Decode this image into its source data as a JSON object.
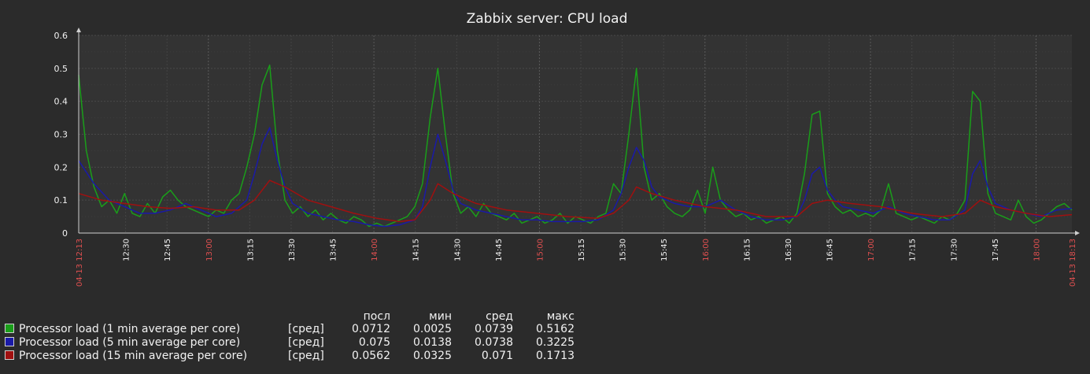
{
  "chart_data": {
    "type": "line",
    "title": "Zabbix server: CPU load",
    "y_ticks": [
      "0",
      "0.1",
      "0.2",
      "0.3",
      "0.4",
      "0.5",
      "0.6"
    ],
    "ylim": [
      0,
      0.6
    ],
    "x_start_label": "04-13 12:13",
    "x_end_label": "04-13 18:13",
    "x_ticks": [
      {
        "label": "12:30",
        "major": false
      },
      {
        "label": "12:45",
        "major": false
      },
      {
        "label": "13:00",
        "major": true
      },
      {
        "label": "13:15",
        "major": false
      },
      {
        "label": "13:30",
        "major": false
      },
      {
        "label": "13:45",
        "major": false
      },
      {
        "label": "14:00",
        "major": true
      },
      {
        "label": "14:15",
        "major": false
      },
      {
        "label": "14:30",
        "major": false
      },
      {
        "label": "14:45",
        "major": false
      },
      {
        "label": "15:00",
        "major": true
      },
      {
        "label": "15:15",
        "major": false
      },
      {
        "label": "15:30",
        "major": false
      },
      {
        "label": "15:45",
        "major": false
      },
      {
        "label": "16:00",
        "major": true
      },
      {
        "label": "16:15",
        "major": false
      },
      {
        "label": "16:30",
        "major": false
      },
      {
        "label": "16:45",
        "major": false
      },
      {
        "label": "17:00",
        "major": true
      },
      {
        "label": "17:15",
        "major": false
      },
      {
        "label": "17:30",
        "major": false
      },
      {
        "label": "17:45",
        "major": false
      },
      {
        "label": "18:00",
        "major": true
      }
    ],
    "grid": true,
    "series": [
      {
        "name": "Processor load (1 min average per core)",
        "color": "#1a9e1a",
        "points": [
          [
            0,
            0.48
          ],
          [
            1,
            0.25
          ],
          [
            2,
            0.14
          ],
          [
            3,
            0.08
          ],
          [
            4,
            0.1
          ],
          [
            5,
            0.06
          ],
          [
            6,
            0.12
          ],
          [
            7,
            0.06
          ],
          [
            8,
            0.05
          ],
          [
            9,
            0.09
          ],
          [
            10,
            0.06
          ],
          [
            11,
            0.11
          ],
          [
            12,
            0.13
          ],
          [
            13,
            0.1
          ],
          [
            14,
            0.08
          ],
          [
            15,
            0.07
          ],
          [
            16,
            0.06
          ],
          [
            17,
            0.05
          ],
          [
            18,
            0.07
          ],
          [
            19,
            0.06
          ],
          [
            20,
            0.1
          ],
          [
            21,
            0.12
          ],
          [
            22,
            0.2
          ],
          [
            23,
            0.3
          ],
          [
            24,
            0.45
          ],
          [
            25,
            0.51
          ],
          [
            26,
            0.25
          ],
          [
            27,
            0.1
          ],
          [
            28,
            0.06
          ],
          [
            29,
            0.08
          ],
          [
            30,
            0.05
          ],
          [
            31,
            0.07
          ],
          [
            32,
            0.04
          ],
          [
            33,
            0.06
          ],
          [
            34,
            0.04
          ],
          [
            35,
            0.03
          ],
          [
            36,
            0.05
          ],
          [
            37,
            0.04
          ],
          [
            38,
            0.02
          ],
          [
            39,
            0.03
          ],
          [
            40,
            0.02
          ],
          [
            41,
            0.03
          ],
          [
            42,
            0.04
          ],
          [
            43,
            0.05
          ],
          [
            44,
            0.08
          ],
          [
            45,
            0.15
          ],
          [
            46,
            0.35
          ],
          [
            47,
            0.5
          ],
          [
            48,
            0.3
          ],
          [
            49,
            0.12
          ],
          [
            50,
            0.06
          ],
          [
            51,
            0.08
          ],
          [
            52,
            0.05
          ],
          [
            53,
            0.09
          ],
          [
            54,
            0.06
          ],
          [
            55,
            0.05
          ],
          [
            56,
            0.04
          ],
          [
            57,
            0.06
          ],
          [
            58,
            0.03
          ],
          [
            59,
            0.04
          ],
          [
            60,
            0.05
          ],
          [
            61,
            0.03
          ],
          [
            62,
            0.04
          ],
          [
            63,
            0.06
          ],
          [
            64,
            0.03
          ],
          [
            65,
            0.05
          ],
          [
            66,
            0.04
          ],
          [
            67,
            0.03
          ],
          [
            68,
            0.05
          ],
          [
            69,
            0.06
          ],
          [
            70,
            0.15
          ],
          [
            71,
            0.12
          ],
          [
            72,
            0.3
          ],
          [
            73,
            0.5
          ],
          [
            74,
            0.2
          ],
          [
            75,
            0.1
          ],
          [
            76,
            0.12
          ],
          [
            77,
            0.08
          ],
          [
            78,
            0.06
          ],
          [
            79,
            0.05
          ],
          [
            80,
            0.07
          ],
          [
            81,
            0.13
          ],
          [
            82,
            0.06
          ],
          [
            83,
            0.2
          ],
          [
            84,
            0.1
          ],
          [
            85,
            0.07
          ],
          [
            86,
            0.05
          ],
          [
            87,
            0.06
          ],
          [
            88,
            0.04
          ],
          [
            89,
            0.05
          ],
          [
            90,
            0.03
          ],
          [
            91,
            0.04
          ],
          [
            92,
            0.05
          ],
          [
            93,
            0.03
          ],
          [
            94,
            0.06
          ],
          [
            95,
            0.18
          ],
          [
            96,
            0.36
          ],
          [
            97,
            0.37
          ],
          [
            98,
            0.12
          ],
          [
            99,
            0.08
          ],
          [
            100,
            0.06
          ],
          [
            101,
            0.07
          ],
          [
            102,
            0.05
          ],
          [
            103,
            0.06
          ],
          [
            104,
            0.05
          ],
          [
            105,
            0.07
          ],
          [
            106,
            0.15
          ],
          [
            107,
            0.06
          ],
          [
            108,
            0.05
          ],
          [
            109,
            0.04
          ],
          [
            110,
            0.05
          ],
          [
            111,
            0.04
          ],
          [
            112,
            0.03
          ],
          [
            113,
            0.05
          ],
          [
            114,
            0.04
          ],
          [
            115,
            0.06
          ],
          [
            116,
            0.1
          ],
          [
            117,
            0.43
          ],
          [
            118,
            0.4
          ],
          [
            119,
            0.12
          ],
          [
            120,
            0.06
          ],
          [
            121,
            0.05
          ],
          [
            122,
            0.04
          ],
          [
            123,
            0.1
          ],
          [
            124,
            0.05
          ],
          [
            125,
            0.03
          ],
          [
            126,
            0.04
          ],
          [
            127,
            0.06
          ],
          [
            128,
            0.08
          ],
          [
            129,
            0.09
          ],
          [
            130,
            0.07
          ]
        ]
      },
      {
        "name": "Processor load (5 min average per core)",
        "color": "#1a1aa8",
        "points": [
          [
            0,
            0.22
          ],
          [
            2,
            0.15
          ],
          [
            4,
            0.1
          ],
          [
            6,
            0.08
          ],
          [
            8,
            0.06
          ],
          [
            10,
            0.06
          ],
          [
            12,
            0.07
          ],
          [
            14,
            0.09
          ],
          [
            16,
            0.07
          ],
          [
            18,
            0.05
          ],
          [
            20,
            0.06
          ],
          [
            22,
            0.1
          ],
          [
            23,
            0.18
          ],
          [
            24,
            0.27
          ],
          [
            25,
            0.32
          ],
          [
            26,
            0.22
          ],
          [
            27,
            0.14
          ],
          [
            28,
            0.09
          ],
          [
            30,
            0.06
          ],
          [
            32,
            0.05
          ],
          [
            34,
            0.04
          ],
          [
            36,
            0.035
          ],
          [
            38,
            0.025
          ],
          [
            40,
            0.02
          ],
          [
            42,
            0.025
          ],
          [
            44,
            0.04
          ],
          [
            45,
            0.08
          ],
          [
            46,
            0.2
          ],
          [
            47,
            0.3
          ],
          [
            48,
            0.22
          ],
          [
            49,
            0.13
          ],
          [
            50,
            0.09
          ],
          [
            52,
            0.07
          ],
          [
            54,
            0.06
          ],
          [
            56,
            0.05
          ],
          [
            58,
            0.04
          ],
          [
            60,
            0.04
          ],
          [
            62,
            0.035
          ],
          [
            64,
            0.035
          ],
          [
            66,
            0.035
          ],
          [
            68,
            0.04
          ],
          [
            70,
            0.07
          ],
          [
            71,
            0.12
          ],
          [
            72,
            0.2
          ],
          [
            73,
            0.26
          ],
          [
            74,
            0.22
          ],
          [
            75,
            0.14
          ],
          [
            76,
            0.11
          ],
          [
            78,
            0.09
          ],
          [
            80,
            0.08
          ],
          [
            82,
            0.08
          ],
          [
            84,
            0.1
          ],
          [
            86,
            0.07
          ],
          [
            88,
            0.05
          ],
          [
            90,
            0.04
          ],
          [
            92,
            0.04
          ],
          [
            94,
            0.05
          ],
          [
            95,
            0.1
          ],
          [
            96,
            0.18
          ],
          [
            97,
            0.2
          ],
          [
            98,
            0.13
          ],
          [
            99,
            0.1
          ],
          [
            100,
            0.08
          ],
          [
            102,
            0.07
          ],
          [
            104,
            0.06
          ],
          [
            106,
            0.08
          ],
          [
            108,
            0.06
          ],
          [
            110,
            0.05
          ],
          [
            112,
            0.04
          ],
          [
            114,
            0.04
          ],
          [
            116,
            0.07
          ],
          [
            117,
            0.18
          ],
          [
            118,
            0.22
          ],
          [
            119,
            0.14
          ],
          [
            120,
            0.09
          ],
          [
            122,
            0.07
          ],
          [
            124,
            0.06
          ],
          [
            126,
            0.05
          ],
          [
            128,
            0.07
          ],
          [
            130,
            0.075
          ]
        ]
      },
      {
        "name": "Processor load (15 min average per core)",
        "color": "#a01010",
        "points": [
          [
            0,
            0.12
          ],
          [
            3,
            0.1
          ],
          [
            6,
            0.09
          ],
          [
            9,
            0.08
          ],
          [
            12,
            0.075
          ],
          [
            15,
            0.08
          ],
          [
            18,
            0.07
          ],
          [
            21,
            0.07
          ],
          [
            23,
            0.1
          ],
          [
            25,
            0.16
          ],
          [
            27,
            0.14
          ],
          [
            30,
            0.1
          ],
          [
            33,
            0.08
          ],
          [
            36,
            0.06
          ],
          [
            39,
            0.045
          ],
          [
            42,
            0.035
          ],
          [
            44,
            0.04
          ],
          [
            46,
            0.1
          ],
          [
            47,
            0.15
          ],
          [
            49,
            0.12
          ],
          [
            52,
            0.09
          ],
          [
            56,
            0.07
          ],
          [
            60,
            0.06
          ],
          [
            64,
            0.05
          ],
          [
            68,
            0.045
          ],
          [
            70,
            0.06
          ],
          [
            72,
            0.1
          ],
          [
            73,
            0.14
          ],
          [
            75,
            0.12
          ],
          [
            78,
            0.1
          ],
          [
            82,
            0.08
          ],
          [
            86,
            0.07
          ],
          [
            90,
            0.05
          ],
          [
            94,
            0.05
          ],
          [
            96,
            0.09
          ],
          [
            98,
            0.1
          ],
          [
            101,
            0.09
          ],
          [
            105,
            0.08
          ],
          [
            109,
            0.06
          ],
          [
            113,
            0.05
          ],
          [
            116,
            0.06
          ],
          [
            118,
            0.1
          ],
          [
            120,
            0.08
          ],
          [
            124,
            0.06
          ],
          [
            127,
            0.05
          ],
          [
            130,
            0.056
          ]
        ]
      }
    ],
    "legend": {
      "headers": [
        "посл",
        "мин",
        "сред",
        "макс"
      ],
      "rows": [
        {
          "name": "Processor load (1 min average per core)",
          "func": "[сред]",
          "color": "#1a9e1a",
          "last": "0.0712",
          "min": "0.0025",
          "avg": "0.0739",
          "max": "0.5162"
        },
        {
          "name": "Processor load (5 min average per core)",
          "func": "[сред]",
          "color": "#1a1aa8",
          "last": "0.075",
          "min": "0.0138",
          "avg": "0.0738",
          "max": "0.3225"
        },
        {
          "name": "Processor load (15 min average per core)",
          "func": "[сред]",
          "color": "#a01010",
          "last": "0.0562",
          "min": "0.0325",
          "avg": "0.071",
          "max": "0.1713"
        }
      ]
    }
  }
}
